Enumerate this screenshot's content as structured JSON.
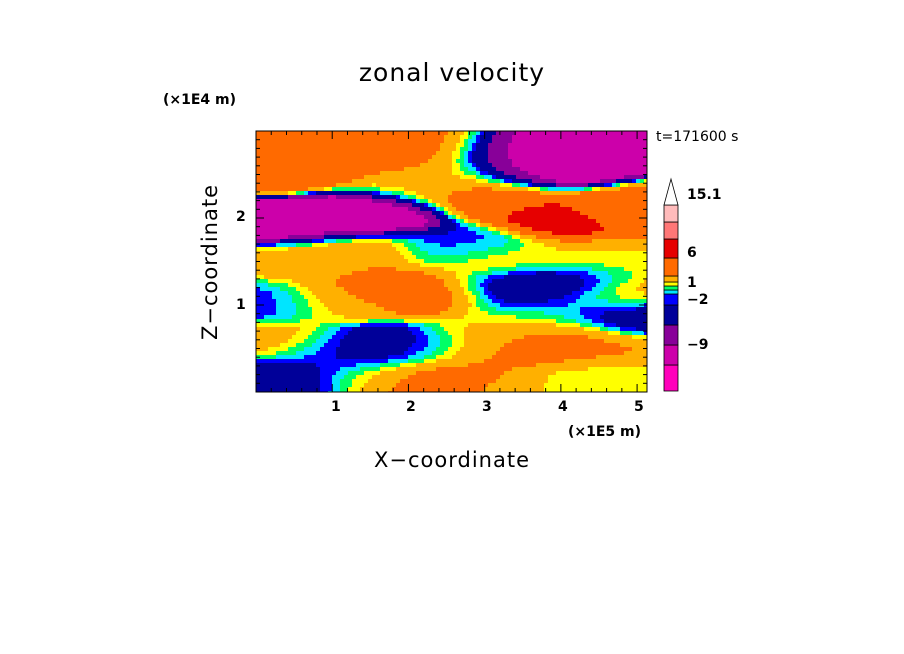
{
  "chart_data": {
    "type": "heatmap",
    "title": "zonal velocity",
    "xlabel": "X−coordinate",
    "ylabel": "Z−coordinate",
    "x_unit": "(×1E5 m)",
    "y_unit": "(×1E4 m)",
    "time_label": "t=171600 s",
    "xlim": [
      0,
      5.13
    ],
    "ylim": [
      0,
      3.0
    ],
    "x_ticks": [
      "1",
      "2",
      "3",
      "4",
      "5"
    ],
    "y_ticks": [
      "1",
      "2"
    ],
    "colorbar": {
      "labels": [
        "15.1",
        "6",
        "1",
        "−2",
        "−9"
      ],
      "colors": [
        "#ff00bb",
        "#cc00aa",
        "#880099",
        "#000099",
        "#0000ff",
        "#00e5ff",
        "#00ff66",
        "#ffff00",
        "#ffb000",
        "#ff6a00",
        "#e60000",
        "#ff7777",
        "#ffbbbb"
      ]
    },
    "features": [
      {
        "x": 0.6,
        "z": 1.95,
        "value": -12
      },
      {
        "x": 1.45,
        "z": 2.05,
        "value": -12
      },
      {
        "x": 3.8,
        "z": 2.6,
        "value": -12
      },
      {
        "x": 3.4,
        "z": 2.65,
        "value": -10
      },
      {
        "x": 1.5,
        "z": 2.7,
        "value": 5
      },
      {
        "x": 0.4,
        "z": 2.55,
        "value": 6
      },
      {
        "x": 2.2,
        "z": 2.7,
        "value": 4
      },
      {
        "x": 4.9,
        "z": 2.1,
        "value": 4
      },
      {
        "x": 2.6,
        "z": 2.5,
        "value": 2
      },
      {
        "x": 3.0,
        "z": 2.25,
        "value": 5
      },
      {
        "x": 4.1,
        "z": 2.0,
        "value": 7
      },
      {
        "x": 2.1,
        "z": 2.4,
        "value": 1
      },
      {
        "x": 0.6,
        "z": 1.45,
        "value": 2
      },
      {
        "x": 1.3,
        "z": 1.6,
        "value": 3
      },
      {
        "x": 1.5,
        "z": 1.15,
        "value": 5
      },
      {
        "x": 2.3,
        "z": 1.15,
        "value": 5
      },
      {
        "x": 4.8,
        "z": 1.15,
        "value": 3
      },
      {
        "x": 3.1,
        "z": 1.5,
        "value": 2
      },
      {
        "x": 4.4,
        "z": 1.5,
        "value": 1
      },
      {
        "x": 3.4,
        "z": 1.2,
        "value": -6
      },
      {
        "x": 4.1,
        "z": 1.25,
        "value": -6
      },
      {
        "x": 4.9,
        "z": 0.9,
        "value": -5
      },
      {
        "x": 2.7,
        "z": 1.65,
        "value": -3
      },
      {
        "x": 0.4,
        "z": 0.55,
        "value": 3
      },
      {
        "x": 1.0,
        "z": 0.45,
        "value": -3
      },
      {
        "x": 1.4,
        "z": 0.5,
        "value": -6
      },
      {
        "x": 2.2,
        "z": 0.5,
        "value": -4
      },
      {
        "x": 2.8,
        "z": 0.45,
        "value": 4
      },
      {
        "x": 3.2,
        "z": 0.7,
        "value": 1
      },
      {
        "x": 3.7,
        "z": 0.6,
        "value": 5
      },
      {
        "x": 4.3,
        "z": 0.5,
        "value": 3
      },
      {
        "x": 0.4,
        "z": 0.2,
        "value": -5
      },
      {
        "x": 1.6,
        "z": 0.2,
        "value": 1
      },
      {
        "x": 2.4,
        "z": 0.15,
        "value": 6
      },
      {
        "x": 3.0,
        "z": 0.1,
        "value": 2
      },
      {
        "x": 4.5,
        "z": 0.1,
        "value": 0
      },
      {
        "x": 1.1,
        "z": 1.05,
        "value": 1
      },
      {
        "x": 0.1,
        "z": 1.05,
        "value": -3
      },
      {
        "x": 3.8,
        "z": 0.9,
        "value": -1
      }
    ]
  }
}
